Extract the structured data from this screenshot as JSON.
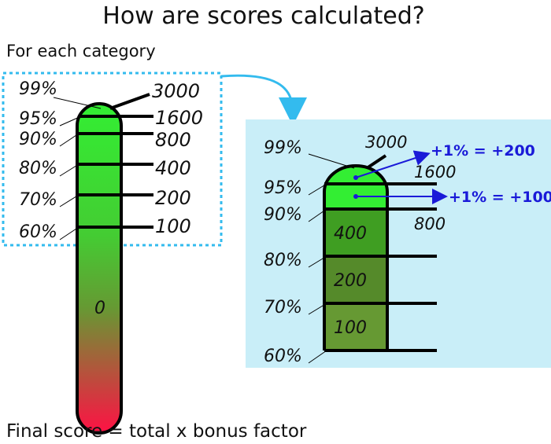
{
  "title": "How are scores calculated?",
  "subtitle": "For each category",
  "footer": "Final score = total x bonus factor",
  "colors": {
    "border_dotted": "#33bbee",
    "detail_panel": "#c9eef8",
    "green_top": "#33ee33",
    "red_bottom": "#ff1144",
    "olive": "#669933",
    "annotation": "#1a1ad8"
  },
  "left_thermometer": {
    "percentiles": [
      "99%",
      "95%",
      "90%",
      "80%",
      "70%",
      "60%"
    ],
    "scores": [
      "3000",
      "1600",
      "800",
      "400",
      "200",
      "100"
    ],
    "base_label": "0"
  },
  "detail": {
    "percentiles": [
      "99%",
      "95%",
      "90%",
      "80%",
      "70%",
      "60%"
    ],
    "top_scores": [
      "3000",
      "1600",
      "800"
    ],
    "band_labels": [
      "400",
      "200",
      "100"
    ],
    "notes": [
      "+1% = +200",
      "+1% = +100"
    ]
  }
}
